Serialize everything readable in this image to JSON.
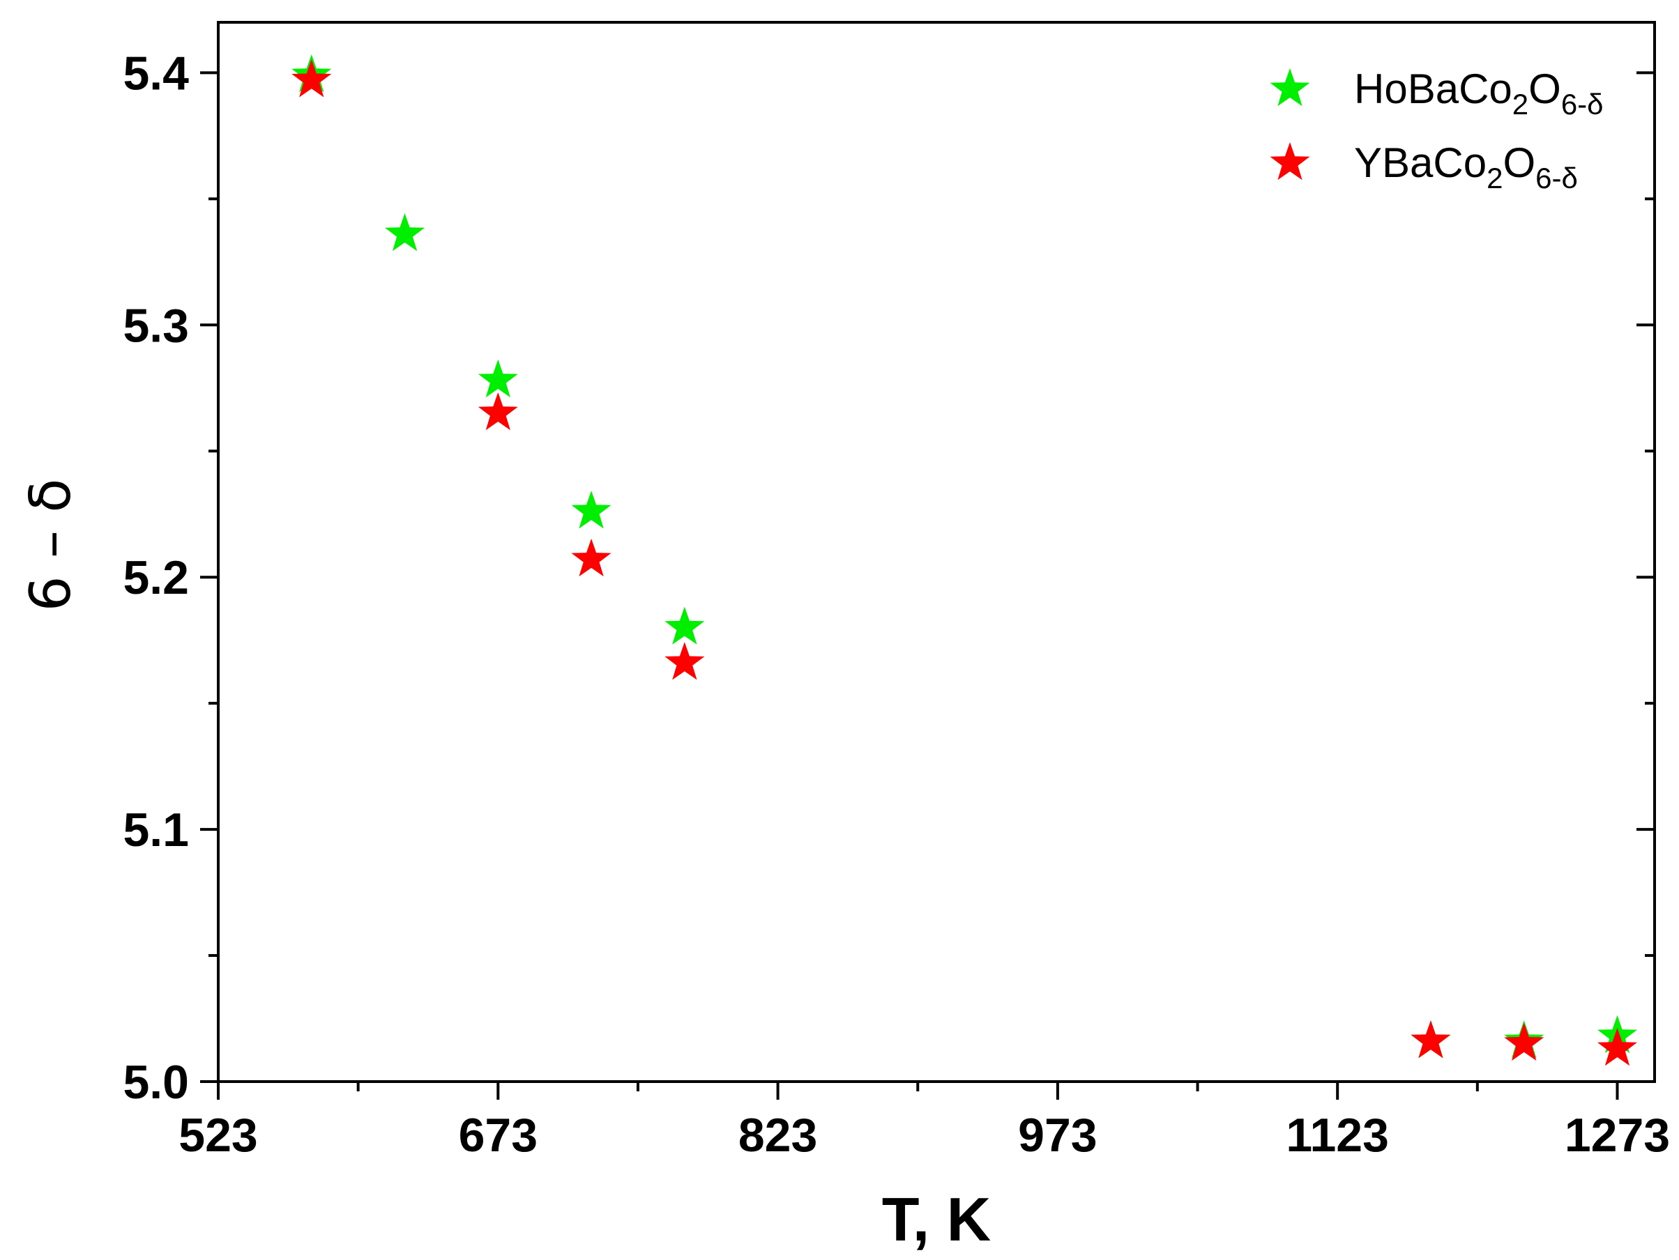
{
  "chart_data": {
    "type": "scatter",
    "xlabel": "T, K",
    "ylabel": "6 – δ",
    "xlim": [
      523,
      1293
    ],
    "ylim": [
      5.0,
      5.42
    ],
    "x_ticks": [
      "523",
      "673",
      "823",
      "973",
      "1123",
      "1273"
    ],
    "y_ticks": [
      "5.0",
      "5.1",
      "5.2",
      "5.3",
      "5.4"
    ],
    "legend_position": "top-right",
    "series": [
      {
        "name": "HoBaCo2O6-δ",
        "name_parts": {
          "main": "HoBaCo",
          "sub1": "2",
          "mid": "O",
          "sub2": "6-δ"
        },
        "color": "#00ee00",
        "marker": "star",
        "x": [
          573,
          623,
          673,
          723,
          773,
          1173,
          1223,
          1273
        ],
        "y": [
          5.399,
          5.336,
          5.278,
          5.226,
          5.18,
          5.016,
          5.016,
          5.018
        ]
      },
      {
        "name": "YBaCo2O6-δ",
        "name_parts": {
          "main": "YBaCo",
          "sub1": "2",
          "mid": "O",
          "sub2": "6-δ"
        },
        "color": "#ff0000",
        "marker": "star",
        "x": [
          573,
          673,
          723,
          773,
          1173,
          1223,
          1273
        ],
        "y": [
          5.397,
          5.265,
          5.207,
          5.166,
          5.016,
          5.015,
          5.013
        ]
      }
    ]
  }
}
